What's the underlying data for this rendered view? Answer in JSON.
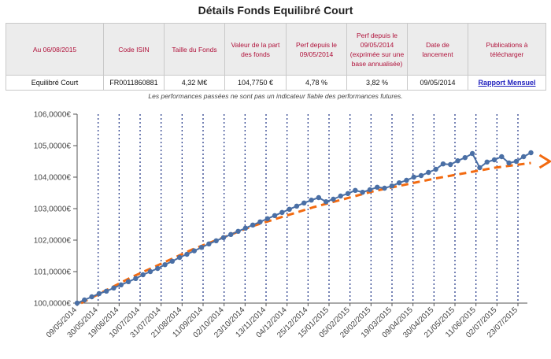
{
  "page": {
    "title": "Détails Fonds Equilibré Court",
    "disclaimer": "Les performances passées ne sont pas un indicateur fiable des performances futures."
  },
  "table": {
    "headers": [
      "Au 06/08/2015",
      "Code ISIN",
      "Taille du Fonds",
      "Valeur de la part des fonds",
      "Perf depuis le 09/05/2014",
      "Perf depuis le 09/05/2014 (exprimée sur une base annualisée)",
      "Date de lancement",
      "Publications à télécharger"
    ],
    "row": [
      "Equilibré Court",
      "FR0011860881",
      "4,32 M€",
      "104,7750 €",
      "4,78 %",
      "3,82 %",
      "09/05/2014",
      "Rapport Mensuel"
    ]
  },
  "colors": {
    "header_text": "#b0113a",
    "link": "#1d1dbd",
    "series": "#4a6fa5",
    "trend": "#f26a10",
    "gridline": "#2b3f8c"
  },
  "chart_data": {
    "type": "line",
    "x_type": "date",
    "grid": true,
    "ylim": [
      100,
      106
    ],
    "yticks": [
      "100,0000€",
      "101,0000€",
      "102,0000€",
      "103,0000€",
      "104,0000€",
      "105,0000€",
      "106,0000€"
    ],
    "xticks": [
      "09/05/2014",
      "30/05/2014",
      "19/06/2014",
      "10/07/2014",
      "31/07/2014",
      "21/08/2014",
      "11/09/2014",
      "02/10/2014",
      "23/10/2014",
      "13/11/2014",
      "04/12/2014",
      "25/12/2014",
      "15/01/2015",
      "05/02/2015",
      "26/02/2015",
      "19/03/2015",
      "09/04/2015",
      "30/04/2015",
      "21/05/2015",
      "11/06/2015",
      "02/07/2015",
      "23/07/2015"
    ],
    "series": [
      {
        "values": [
          100.0,
          100.1,
          100.2,
          100.3,
          100.38,
          100.48,
          100.58,
          100.68,
          100.78,
          100.9,
          101.0,
          101.1,
          101.22,
          101.33,
          101.45,
          101.55,
          101.66,
          101.77,
          101.88,
          101.98,
          102.08,
          102.18,
          102.28,
          102.38,
          102.48,
          102.58,
          102.68,
          102.78,
          102.88,
          102.98,
          103.08,
          103.18,
          103.27,
          103.35,
          103.22,
          103.3,
          103.4,
          103.48,
          103.58,
          103.52,
          103.6,
          103.68,
          103.65,
          103.72,
          103.82,
          103.9,
          104.0,
          104.05,
          104.15,
          104.25,
          104.42,
          104.4,
          104.52,
          104.62,
          104.75,
          104.3,
          104.48,
          104.55,
          104.65,
          104.45,
          104.5,
          104.65,
          104.775
        ]
      },
      {
        "type": "trend",
        "x_dates": [
          "2014-05-13",
          "2014-07-01",
          "2014-09-01",
          "2014-11-01",
          "2015-01-01",
          "2015-03-01",
          "2015-05-01",
          "2015-07-01",
          "2015-08-06"
        ],
        "values": [
          100.0,
          100.8,
          101.7,
          102.45,
          103.05,
          103.55,
          103.95,
          104.3,
          104.45
        ]
      }
    ]
  }
}
